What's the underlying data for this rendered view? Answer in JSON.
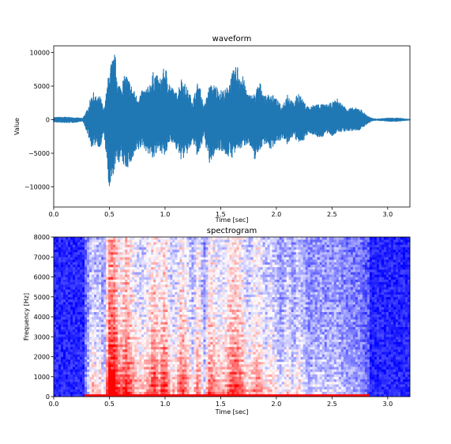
{
  "chart_data": [
    {
      "type": "line",
      "title": "waveform",
      "xlabel": "Time [sec]",
      "ylabel": "Value",
      "xlim": [
        0.0,
        3.2
      ],
      "ylim": [
        -13000,
        11000
      ],
      "xticks": [
        0.0,
        0.5,
        1.0,
        1.5,
        2.0,
        2.5,
        3.0
      ],
      "xtick_labels": [
        "0.0",
        "0.5",
        "1.0",
        "1.5",
        "2.0",
        "2.5",
        "3.0"
      ],
      "yticks": [
        10000,
        5000,
        0,
        -5000,
        -10000
      ],
      "ytick_labels": [
        "10000",
        "5000",
        "0",
        "−5000",
        "−10000"
      ],
      "grid": false,
      "series": [
        {
          "color": "#1f77b4",
          "envelope": {
            "t": [
              0.0,
              0.1,
              0.2,
              0.26,
              0.3,
              0.35,
              0.38,
              0.42,
              0.45,
              0.48,
              0.5,
              0.55,
              0.58,
              0.6,
              0.65,
              0.7,
              0.75,
              0.8,
              0.85,
              0.9,
              0.95,
              1.0,
              1.05,
              1.1,
              1.15,
              1.2,
              1.25,
              1.3,
              1.35,
              1.4,
              1.45,
              1.5,
              1.55,
              1.6,
              1.65,
              1.7,
              1.75,
              1.8,
              1.85,
              1.9,
              1.95,
              2.0,
              2.05,
              2.1,
              2.15,
              2.2,
              2.25,
              2.3,
              2.35,
              2.4,
              2.45,
              2.5,
              2.55,
              2.6,
              2.65,
              2.7,
              2.75,
              2.8,
              2.85,
              2.9,
              3.0,
              3.1,
              3.2
            ],
            "upper": [
              400,
              450,
              350,
              250,
              1500,
              4300,
              3500,
              3500,
              1500,
              5000,
              8000,
              10000,
              5500,
              5500,
              7000,
              5200,
              3500,
              4500,
              5000,
              7500,
              6000,
              8200,
              5300,
              4000,
              6500,
              4700,
              3000,
              6000,
              2000,
              5200,
              5300,
              4500,
              4600,
              7000,
              8300,
              6500,
              3800,
              3900,
              5800,
              3500,
              4100,
              3200,
              2000,
              4200,
              2500,
              4200,
              2600,
              1900,
              2500,
              2400,
              2300,
              2600,
              3200,
              2200,
              1800,
              1800,
              1800,
              900,
              300,
              150,
              300,
              300,
              100
            ],
            "lower": [
              -400,
              -550,
              -450,
              -250,
              -2000,
              -4700,
              -3500,
              -4500,
              -2000,
              -7000,
              -12000,
              -7000,
              -6500,
              -6200,
              -7500,
              -6500,
              -5000,
              -4000,
              -5200,
              -6000,
              -4500,
              -5800,
              -3000,
              -4500,
              -6200,
              -5200,
              -3500,
              -6000,
              -2500,
              -7000,
              -5000,
              -4500,
              -5500,
              -5800,
              -4700,
              -4200,
              -3500,
              -6200,
              -4600,
              -3500,
              -4600,
              -3300,
              -3000,
              -3800,
              -2500,
              -3700,
              -3000,
              -2000,
              -2500,
              -2800,
              -2100,
              -2500,
              -2000,
              -1800,
              -1800,
              -1700,
              -1600,
              -900,
              -300,
              -150,
              -300,
              -300,
              -100
            ]
          }
        }
      ]
    },
    {
      "type": "heatmap",
      "title": "spectrogram",
      "xlabel": "Time [sec]",
      "ylabel": "Frequency [Hz]",
      "xlim": [
        0.0,
        3.2
      ],
      "ylim": [
        0,
        8000
      ],
      "xticks": [
        0.0,
        0.5,
        1.0,
        1.5,
        2.0,
        2.5,
        3.0
      ],
      "xtick_labels": [
        "0.0",
        "0.5",
        "1.0",
        "1.5",
        "2.0",
        "2.5",
        "3.0"
      ],
      "yticks": [
        0,
        1000,
        2000,
        3000,
        4000,
        5000,
        6000,
        7000,
        8000
      ],
      "ytick_labels": [
        "0",
        "1000",
        "2000",
        "3000",
        "4000",
        "5000",
        "6000",
        "7000",
        "8000"
      ],
      "colormap": "bwr",
      "colors": {
        "low": "#0000ff",
        "mid": "#ffffff",
        "high": "#ff0000"
      },
      "grid": false
    }
  ]
}
